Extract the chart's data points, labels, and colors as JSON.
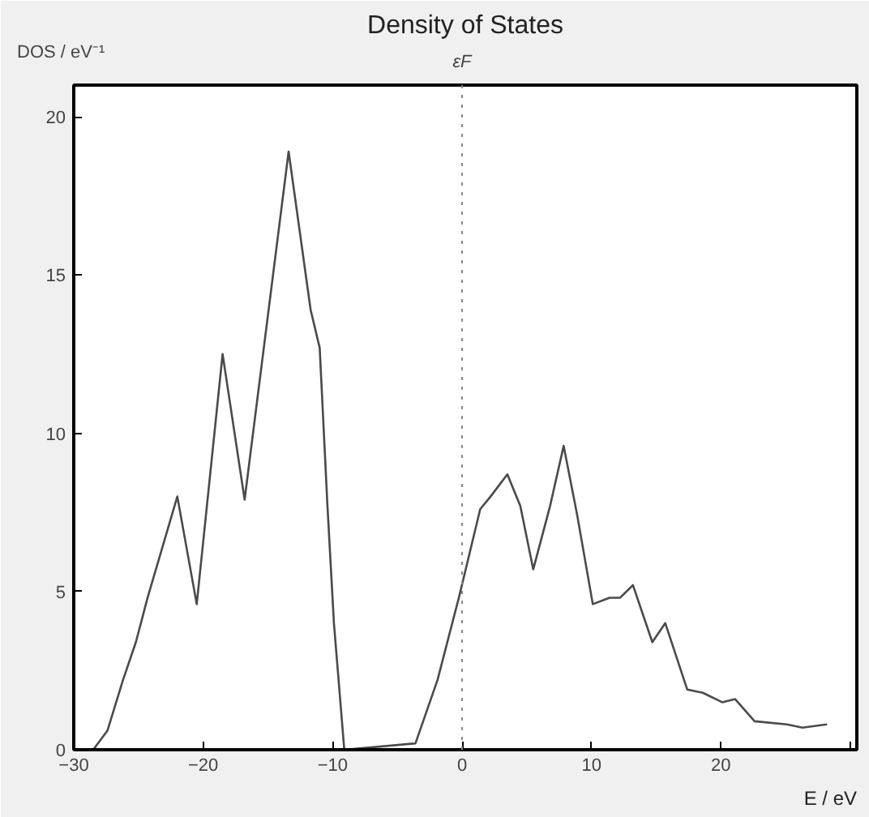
{
  "chart_data": {
    "type": "line",
    "title": "Density of States",
    "xlabel": "E / eV",
    "ylabel": "DOS / eV⁻¹",
    "x": [
      -30,
      -28.5,
      -27.4,
      -26.2,
      -25.2,
      -24.3,
      -22.0,
      -20.5,
      -18.5,
      -16.8,
      -13.4,
      -11.7,
      -11.0,
      -10.4,
      -9.9,
      -9.1,
      -3.6,
      -1.9,
      -0.25,
      1.4,
      2.2,
      3.5,
      4.5,
      5.5,
      6.8,
      7.85,
      8.9,
      10.1,
      11.4,
      12.2,
      13.2,
      14.7,
      15.7,
      17.4,
      18.6,
      20.1,
      21.1,
      22.6,
      25.1,
      26.3,
      28.2
    ],
    "series": [
      {
        "color": "#4a4a4a",
        "values": [
          0,
          0,
          0.6,
          2.2,
          3.4,
          4.8,
          8.0,
          4.6,
          12.5,
          7.9,
          18.9,
          13.9,
          12.7,
          7.7,
          4.0,
          0,
          0.2,
          2.2,
          4.8,
          7.6,
          8.0,
          8.7,
          7.7,
          5.7,
          7.7,
          9.6,
          7.4,
          4.6,
          4.8,
          4.8,
          5.2,
          3.4,
          4.0,
          1.9,
          1.8,
          1.5,
          1.6,
          0.9,
          0.8,
          0.7,
          0.8
        ]
      }
    ],
    "xlim": [
      -30,
      30.5
    ],
    "ylim": [
      0,
      21
    ],
    "xticks": [
      -30,
      -20,
      -10,
      0,
      10,
      20,
      {
        "value": 30,
        "label": null
      }
    ],
    "yticks": [
      0,
      5,
      10,
      15,
      20
    ],
    "ref_lines": [
      {
        "axis": "x",
        "value": 0,
        "label": "εF",
        "color": "#888888",
        "line_style": "dotted"
      }
    ],
    "grid": false
  }
}
